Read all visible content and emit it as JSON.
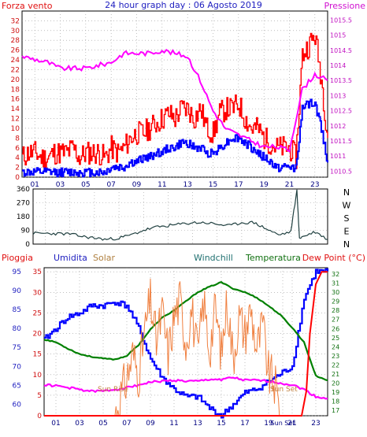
{
  "chart_data": [
    {
      "type": "line",
      "title": "24 hour graph day : 06 Agosto 2019",
      "left_label": "Forza vento",
      "right_label": "Pressione",
      "x_ticks": [
        "01",
        "03",
        "05",
        "07",
        "09",
        "11",
        "13",
        "15",
        "17",
        "19",
        "21",
        "23"
      ],
      "y_left_ticks": [
        "0",
        "2",
        "4",
        "6",
        "8",
        "10",
        "12",
        "14",
        "16",
        "18",
        "20",
        "22",
        "24",
        "26",
        "28",
        "30",
        "32"
      ],
      "y_left_range": [
        0,
        34
      ],
      "y_right_ticks": [
        "1010.5",
        "1011",
        "1011.5",
        "1012",
        "1012.5",
        "1013",
        "1013.5",
        "1014",
        "1014.5",
        "1015",
        "1015.5"
      ],
      "y_right_range": [
        1010.3,
        1015.8
      ],
      "series": [
        {
          "key": "gust",
          "color": "#ff0000",
          "x": [
            0,
            0.5,
            1,
            1.5,
            2,
            2.5,
            3,
            3.5,
            4,
            4.5,
            5,
            5.5,
            6,
            6.5,
            7,
            7.5,
            8,
            8.5,
            9,
            9.5,
            10,
            10.5,
            11,
            11.5,
            12,
            12.5,
            13,
            13.5,
            14,
            14.5,
            15,
            15.5,
            16,
            16.5,
            17,
            17.5,
            18,
            18.5,
            19,
            19.5,
            20,
            20.5,
            21,
            21.5,
            22,
            22.5,
            23,
            23.5,
            24
          ],
          "values": [
            4,
            5,
            5,
            4,
            4,
            5,
            5,
            5,
            6,
            4,
            5,
            5,
            5,
            4,
            6,
            5,
            6,
            8,
            9,
            9,
            10,
            11,
            12,
            13,
            12,
            14,
            14,
            12,
            14,
            10,
            9,
            13,
            14,
            14,
            15,
            12,
            10,
            10,
            8,
            7,
            6,
            6,
            6,
            4,
            25,
            27,
            29,
            20,
            8
          ]
        },
        {
          "key": "wind",
          "color": "#0000ff",
          "x": [
            0,
            0.5,
            1,
            1.5,
            2,
            2.5,
            3,
            3.5,
            4,
            4.5,
            5,
            5.5,
            6,
            6.5,
            7,
            7.5,
            8,
            8.5,
            9,
            9.5,
            10,
            10.5,
            11,
            11.5,
            12,
            12.5,
            13,
            13.5,
            14,
            14.5,
            15,
            15.5,
            16,
            16.5,
            17,
            17.5,
            18,
            18.5,
            19,
            19.5,
            20,
            20.5,
            21,
            21.5,
            22,
            22.5,
            23,
            23.5,
            24
          ],
          "values": [
            1,
            1,
            1,
            1,
            1,
            1,
            1,
            1,
            1,
            1,
            1,
            1,
            1,
            1,
            2,
            2,
            2,
            3,
            3,
            4,
            4,
            5,
            5,
            6,
            6,
            7,
            7,
            6,
            6,
            5,
            5,
            6,
            7,
            8,
            8,
            7,
            6,
            5,
            4,
            3,
            2,
            2,
            2,
            2,
            14,
            15,
            15,
            10,
            3
          ]
        },
        {
          "key": "pressure",
          "color": "#ff00ff",
          "axis": "right",
          "x": [
            0,
            1,
            2,
            3,
            4,
            5,
            6,
            7,
            8,
            9,
            10,
            11,
            12,
            13,
            14,
            15,
            16,
            17,
            18,
            19,
            20,
            21,
            22,
            23,
            24
          ],
          "values": [
            1014.3,
            1014.2,
            1014.1,
            1013.9,
            1013.9,
            1013.9,
            1014.0,
            1014.1,
            1014.4,
            1014.4,
            1014.4,
            1014.5,
            1014.4,
            1014.3,
            1013.5,
            1012.5,
            1011.9,
            1011.7,
            1011.5,
            1011.3,
            1011.3,
            1011.2,
            1013.2,
            1013.7,
            1013.5
          ]
        }
      ]
    },
    {
      "type": "line",
      "title": "",
      "y_left_ticks": [
        "0",
        "90",
        "180",
        "270",
        "360"
      ],
      "y_left_range": [
        0,
        360
      ],
      "y_right_ticks": [
        "N",
        "W",
        "S",
        "E",
        "N"
      ],
      "x_ticks": [
        "01",
        "03",
        "05",
        "07",
        "09",
        "11",
        "13",
        "15",
        "17",
        "19",
        "21",
        "23"
      ],
      "series": [
        {
          "key": "direction",
          "color": "#204040",
          "x": [
            0,
            1,
            2,
            3,
            4,
            5,
            6,
            7,
            8,
            9,
            10,
            11,
            12,
            13,
            14,
            15,
            16,
            17,
            18,
            19,
            20,
            21,
            21.5,
            21.7,
            22,
            23,
            24
          ],
          "values": [
            70,
            70,
            68,
            66,
            50,
            40,
            30,
            40,
            60,
            90,
            110,
            120,
            130,
            140,
            140,
            130,
            120,
            140,
            140,
            100,
            60,
            80,
            350,
            40,
            50,
            80,
            30
          ]
        }
      ]
    },
    {
      "type": "line",
      "title": "",
      "legend": [
        "Pioggia",
        "Umidita",
        "Solar",
        "Windchill",
        "Temperatura",
        "Dew Point (°C)"
      ],
      "y_left1_ticks": [
        "0",
        "5",
        "10",
        "15",
        "20",
        "25",
        "30",
        "35"
      ],
      "y_left2_ticks": [
        "60",
        "65",
        "70",
        "75",
        "80",
        "85",
        "90",
        "95"
      ],
      "y_right_ticks": [
        "17",
        "18",
        "19",
        "20",
        "21",
        "22",
        "23",
        "24",
        "25",
        "26",
        "27",
        "28",
        "29",
        "30",
        "31",
        "32"
      ],
      "x_ticks": [
        "01",
        "03",
        "05",
        "07",
        "09",
        "11",
        "13",
        "15",
        "17",
        "19",
        "Sun Set",
        "21",
        "23"
      ],
      "annotations": [
        "Sun Rise",
        "Sun Set"
      ],
      "series": [
        {
          "key": "humidity",
          "color": "#0000ff",
          "axis": "left2",
          "x": [
            0,
            1,
            2,
            3,
            4,
            5,
            6,
            7,
            8,
            9,
            10,
            11,
            12,
            13,
            14,
            15,
            16,
            17,
            18,
            19,
            20,
            21,
            22,
            23,
            24
          ],
          "values": [
            77,
            80,
            83,
            84,
            86,
            86,
            87,
            86,
            80,
            72,
            67,
            64,
            62,
            62,
            59,
            57,
            60,
            63,
            64,
            66,
            68,
            70,
            88,
            95,
            95
          ]
        },
        {
          "key": "dewpoint",
          "color": "#ff00ff",
          "axis": "right",
          "x": [
            0,
            1,
            2,
            3,
            4,
            5,
            6,
            7,
            8,
            9,
            10,
            11,
            12,
            13,
            14,
            15,
            16,
            17,
            18,
            19,
            20,
            21,
            22,
            23,
            24
          ],
          "values": [
            19.8,
            19.7,
            19.5,
            19.3,
            19.1,
            19.1,
            19.3,
            19.5,
            19.8,
            20.1,
            20.2,
            20.3,
            20.2,
            20.2,
            20.4,
            20.4,
            20.6,
            20.3,
            20.3,
            20.2,
            20.0,
            19.8,
            19.3,
            18.5,
            18.3
          ]
        },
        {
          "key": "temperature",
          "color": "#008000",
          "axis": "right",
          "x": [
            0,
            1,
            2,
            3,
            4,
            5,
            6,
            7,
            8,
            9,
            10,
            11,
            12,
            13,
            14,
            15,
            16,
            17,
            18,
            19,
            20,
            21,
            22,
            23,
            24
          ],
          "values": [
            24.8,
            24.5,
            23.8,
            23.2,
            22.9,
            22.7,
            22.6,
            23.0,
            24.2,
            25.9,
            27.2,
            28.0,
            29.0,
            30.0,
            30.6,
            31.1,
            30.4,
            30.0,
            29.4,
            28.5,
            27.5,
            26.1,
            24.5,
            20.8,
            20.3
          ]
        },
        {
          "key": "solar",
          "color": "#f08040",
          "axis": "left1",
          "x": [
            6,
            6.5,
            7,
            7.5,
            8,
            8.5,
            9,
            9.5,
            10,
            10.5,
            11,
            11.5,
            12,
            12.5,
            13,
            13.5,
            14,
            14.5,
            15,
            15.5,
            16,
            16.5,
            17,
            17.5,
            18,
            18.5,
            19,
            19.5,
            20
          ],
          "values": [
            0,
            5,
            9,
            15,
            10,
            20,
            28,
            18,
            25,
            15,
            24,
            28,
            18,
            26,
            14,
            28,
            16,
            26,
            15,
            28,
            14,
            24,
            20,
            26,
            16,
            22,
            10,
            8,
            0
          ]
        },
        {
          "key": "rain",
          "color": "#ff0000",
          "axis": "left1",
          "x": [
            0,
            21.8,
            22.2,
            22.5,
            23,
            23.5,
            24
          ],
          "values": [
            0,
            0,
            6,
            20,
            32,
            35,
            35
          ]
        }
      ]
    }
  ]
}
